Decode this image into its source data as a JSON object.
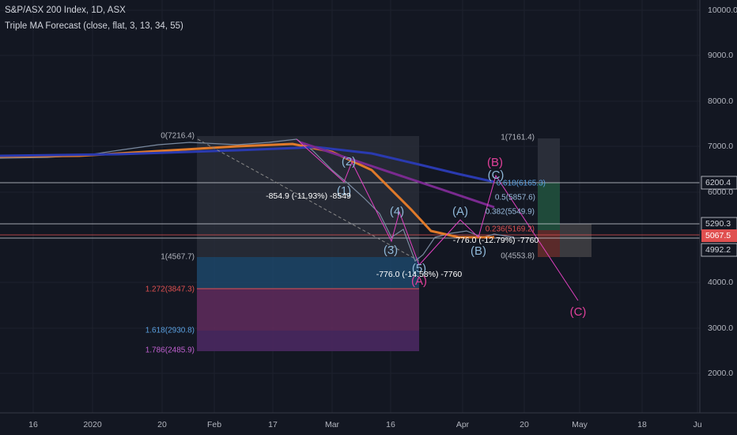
{
  "header": {
    "title": "S&P/ASX 200 Index, 1D, ASX",
    "indicator": "Triple MA Forecast (close, flat, 3, 13, 34, 55)"
  },
  "price_axis": [
    "10000.0",
    "9000.0",
    "8000.0",
    "7000.0",
    "6000.0",
    "4000.0",
    "3000.0",
    "2000.0"
  ],
  "price_labels": [
    "6200.4",
    "5290.3",
    "5067.5",
    "4992.2"
  ],
  "time_axis": [
    "16",
    "2020",
    "20",
    "Feb",
    "17",
    "Mar",
    "16",
    "Apr",
    "20",
    "May",
    "18",
    "Ju"
  ],
  "fib_left": [
    "0(7216.4)",
    "1(4567.7)",
    "1.272(3847.3)",
    "1.618(2930.8)",
    "1.786(2485.9)"
  ],
  "fib_right": [
    "1(7161.4)",
    "0.618(6165.3)",
    "0.5(5857.6)",
    "0.382(5549.9)",
    "0.236(5169.2)",
    "0(4553.8)"
  ],
  "waves": [
    "(2)",
    "(1)",
    "(4)",
    "(3)",
    "(5)",
    "(A)",
    "(A)",
    "(B)",
    "(B)",
    "(C)",
    "(C)"
  ],
  "measures": [
    "-854.9 (-11.93%) -8549",
    "-776.0 (-14.58%) -7760",
    "-776.0 (-12.79%) -7760"
  ]
}
